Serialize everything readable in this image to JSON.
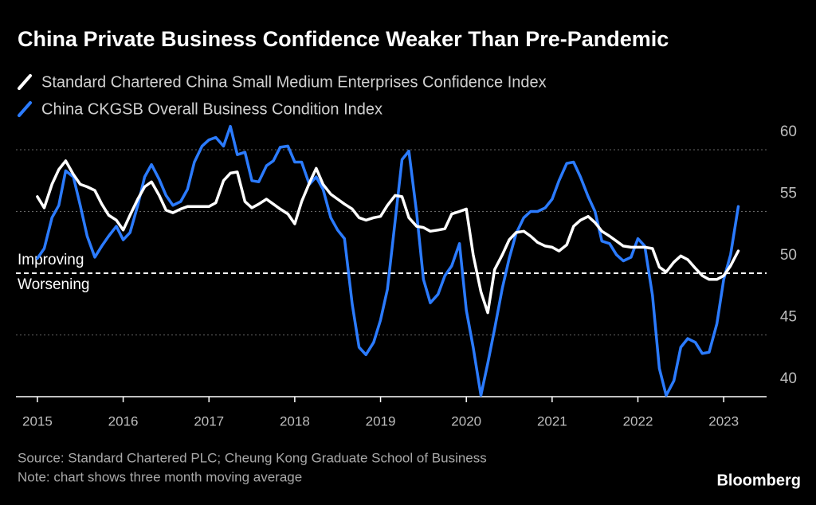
{
  "chart_data": {
    "type": "line",
    "title": "China Private Business Confidence Weaker Than Pre-Pandemic",
    "source": "Source: Standard Chartered PLC; Cheung Kong Graduate School of Business",
    "note": "Note: chart shows three month moving average",
    "brand": "Bloomberg",
    "x": [
      2015.0,
      2015.08,
      2015.17,
      2015.25,
      2015.33,
      2015.42,
      2015.5,
      2015.58,
      2015.67,
      2015.75,
      2015.83,
      2015.92,
      2016.0,
      2016.08,
      2016.17,
      2016.25,
      2016.33,
      2016.42,
      2016.5,
      2016.58,
      2016.67,
      2016.75,
      2016.83,
      2016.92,
      2017.0,
      2017.08,
      2017.17,
      2017.25,
      2017.33,
      2017.42,
      2017.5,
      2017.58,
      2017.67,
      2017.75,
      2017.83,
      2017.92,
      2018.0,
      2018.08,
      2018.17,
      2018.25,
      2018.33,
      2018.42,
      2018.5,
      2018.58,
      2018.67,
      2018.75,
      2018.83,
      2018.92,
      2019.0,
      2019.08,
      2019.17,
      2019.25,
      2019.33,
      2019.42,
      2019.5,
      2019.58,
      2019.67,
      2019.75,
      2019.83,
      2019.92,
      2020.0,
      2020.08,
      2020.17,
      2020.25,
      2020.33,
      2020.42,
      2020.5,
      2020.58,
      2020.67,
      2020.75,
      2020.83,
      2020.92,
      2021.0,
      2021.08,
      2021.17,
      2021.25,
      2021.33,
      2021.42,
      2021.5,
      2021.58,
      2021.67,
      2021.75,
      2021.83,
      2021.92,
      2022.0,
      2022.08,
      2022.17,
      2022.25,
      2022.33,
      2022.42,
      2022.5,
      2022.58,
      2022.67,
      2022.75,
      2022.83,
      2022.92,
      2023.0,
      2023.08,
      2023.17
    ],
    "series": [
      {
        "name": "Standard Chartered China Small Medium Enterprises Confidence Index",
        "color": "#ffffff",
        "values": [
          56.2,
          55.3,
          57.2,
          58.4,
          59.1,
          58.0,
          57.2,
          57.0,
          56.7,
          55.6,
          54.7,
          54.3,
          53.5,
          54.7,
          56.0,
          57.0,
          57.4,
          56.3,
          55.1,
          54.9,
          55.2,
          55.4,
          55.4,
          55.4,
          55.4,
          55.7,
          57.5,
          58.1,
          58.2,
          55.8,
          55.3,
          55.6,
          56.0,
          55.6,
          55.2,
          54.8,
          54.0,
          55.8,
          57.3,
          58.5,
          57.2,
          56.4,
          56.0,
          55.6,
          55.2,
          54.5,
          54.3,
          54.5,
          54.6,
          55.5,
          56.3,
          56.2,
          54.5,
          53.8,
          53.7,
          53.4,
          53.5,
          53.6,
          54.8,
          55.0,
          55.2,
          51.5,
          48.5,
          46.8,
          50.3,
          51.5,
          52.7,
          53.3,
          53.4,
          53.0,
          52.5,
          52.2,
          52.1,
          51.8,
          52.3,
          53.8,
          54.3,
          54.6,
          54.1,
          53.4,
          53.0,
          52.6,
          52.2,
          52.1,
          52.1,
          52.1,
          52.0,
          50.5,
          50.1,
          50.9,
          51.4,
          51.1,
          50.4,
          49.8,
          49.5,
          49.5,
          49.8,
          50.6,
          51.8
        ]
      },
      {
        "name": "China CKGSB Overall Business Condition Index",
        "color": "#2b7bff",
        "values": [
          51.2,
          52.0,
          54.5,
          55.5,
          58.3,
          57.8,
          55.5,
          53.0,
          51.3,
          52.2,
          53.0,
          53.8,
          52.7,
          53.3,
          55.5,
          57.8,
          58.8,
          57.6,
          56.3,
          55.5,
          55.8,
          56.8,
          59.0,
          60.3,
          60.8,
          61.0,
          60.3,
          61.9,
          59.6,
          59.8,
          57.5,
          57.4,
          58.7,
          59.1,
          60.2,
          60.3,
          59.0,
          59.0,
          57.2,
          57.8,
          56.8,
          54.5,
          53.5,
          52.8,
          47.5,
          44.0,
          43.4,
          44.4,
          46.2,
          48.7,
          54.2,
          59.2,
          59.9,
          54.9,
          49.5,
          47.6,
          48.3,
          49.8,
          50.6,
          52.4,
          47.0,
          44.0,
          40.1,
          42.7,
          45.5,
          48.8,
          51.2,
          53.2,
          54.5,
          55.0,
          55.0,
          55.3,
          56.0,
          57.5,
          58.9,
          59.0,
          57.8,
          56.2,
          55.0,
          52.6,
          52.4,
          51.5,
          51.0,
          51.3,
          52.8,
          52.2,
          48.2,
          42.3,
          40.1,
          41.3,
          44.0,
          44.7,
          44.4,
          43.5,
          43.6,
          45.9,
          49.5,
          51.5,
          55.4
        ]
      }
    ],
    "xlim": [
      2014.75,
      2023.5
    ],
    "xticks": [
      2015,
      2016,
      2017,
      2018,
      2019,
      2020,
      2021,
      2022,
      2023
    ],
    "ylim": [
      40,
      62
    ],
    "yticks": [
      40,
      45,
      50,
      55,
      60
    ],
    "grid": true,
    "reference_line": {
      "value": 50,
      "above_label": "Improving",
      "below_label": "Worsening"
    }
  }
}
